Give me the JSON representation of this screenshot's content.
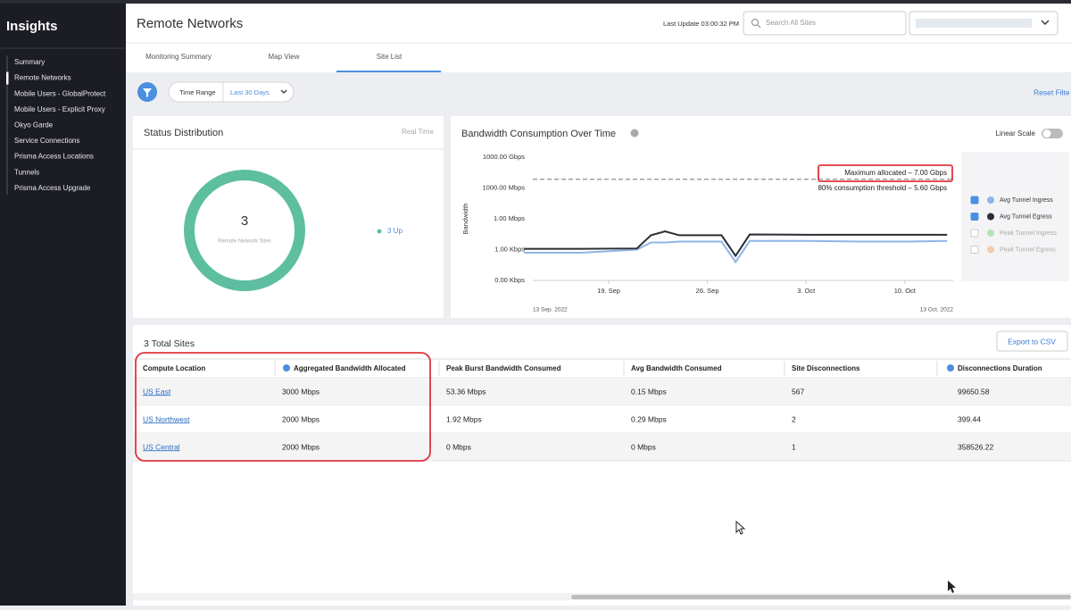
{
  "sidebar": {
    "title": "Insights",
    "active": 1,
    "items": [
      "Summary",
      "Remote Networks",
      "Mobile Users - GlobalProtect",
      "Mobile Users - Explicit Proxy",
      "Okyo Garde",
      "Service Connections",
      "Prisma Access Locations",
      "Tunnels",
      "Prisma Access Upgrade"
    ]
  },
  "header": {
    "title": "Remote Networks",
    "last_update": "Last Update 03:00:32 PM",
    "search_placeholder": "Search All Sites"
  },
  "tabs": {
    "items": [
      "Monitoring Summary",
      "Map View",
      "Site List"
    ],
    "active": 2
  },
  "filters": {
    "time_range_label": "Time Range",
    "time_range_value": "Last 30 Days",
    "reset": "Reset Filte"
  },
  "status": {
    "title": "Status Distribution",
    "mode": "Real Time",
    "total": 3,
    "caption": "Remote Network Sites",
    "segments": [
      {
        "label": "3 Up",
        "value": 3,
        "color": "#5dbfa0"
      }
    ]
  },
  "bandwidth_card": {
    "title": "Bandwidth Consumption Over Time",
    "scale_toggle": "Linear Scale"
  },
  "chart_data": {
    "type": "line",
    "y_label": "Bandwidth",
    "x": [
      "2022-09-13",
      "2022-09-17",
      "2022-09-21",
      "2022-09-22",
      "2022-09-23",
      "2022-09-24",
      "2022-09-27",
      "2022-09-28",
      "2022-09-29",
      "2022-10-03",
      "2022-10-07",
      "2022-10-10",
      "2022-10-13"
    ],
    "xlim": [
      {
        "value": "2022-09-13",
        "label": "13 Sep. 2022"
      },
      {
        "value": "2022-10-13",
        "label": "13 Oct. 2022"
      }
    ],
    "xticks": [
      {
        "value": "2022-09-19",
        "label": "19. Sep"
      },
      {
        "value": "2022-09-26",
        "label": "26. Sep"
      },
      {
        "value": "2022-10-03",
        "label": "3. Oct"
      },
      {
        "value": "2022-10-10",
        "label": "10. Oct"
      }
    ],
    "ylim": [
      0,
      1000000000
    ],
    "yticks": [
      {
        "value": 0,
        "label": "0.00 Kbps"
      },
      {
        "value": 1,
        "label": "1.00 Kbps"
      },
      {
        "value": 1000,
        "label": "1.00 Mbps"
      },
      {
        "value": 1000000,
        "label": "1000.00 Mbps"
      },
      {
        "value": 1000000000,
        "label": "1000.00 Gbps"
      }
    ],
    "log_scale": true,
    "series": [
      {
        "name": "Avg Tunnel Ingress",
        "color": "#8fb4e8",
        "values": [
          0.9,
          0.9,
          1,
          5,
          5,
          6,
          6,
          0.6,
          7,
          7,
          6,
          6,
          7
        ]
      },
      {
        "name": "Avg Tunnel Egress",
        "color": "#2b2d33",
        "values": [
          1.2,
          1.2,
          1.3,
          25,
          60,
          25,
          25,
          0.8,
          30,
          28,
          28,
          28,
          28
        ]
      }
    ],
    "inactive_legend": [
      {
        "name": "Peak Tunnel Ingress",
        "color": "#b5e3b9"
      },
      {
        "name": "Peak Tunnel Egress",
        "color": "#f6c9a8"
      }
    ],
    "annotations": [
      {
        "value": 7000000,
        "label": "Maximum allocated – 7.00 Gbps"
      },
      {
        "value": 5600000,
        "label": "80% consumption threshold – 5.60 Gbps"
      }
    ]
  },
  "table": {
    "summary": "3 Total Sites",
    "export": "Export to CSV",
    "columns": [
      "Compute Location",
      "Aggregated Bandwidth Allocated",
      "Peak Burst Bandwidth Consumed",
      "Avg Bandwidth Consumed",
      "Site Disconnections",
      "Disconnections Duration"
    ],
    "rows": [
      [
        "US East",
        "3000 Mbps",
        "53.36 Mbps",
        "0.15 Mbps",
        "567",
        "99650.58"
      ],
      [
        "US Northwest",
        "2000 Mbps",
        "1.92 Mbps",
        "0.29 Mbps",
        "2",
        "399.44"
      ],
      [
        "US Central",
        "2000 Mbps",
        "0 Mbps",
        "0 Mbps",
        "1",
        "358526.22"
      ]
    ]
  }
}
